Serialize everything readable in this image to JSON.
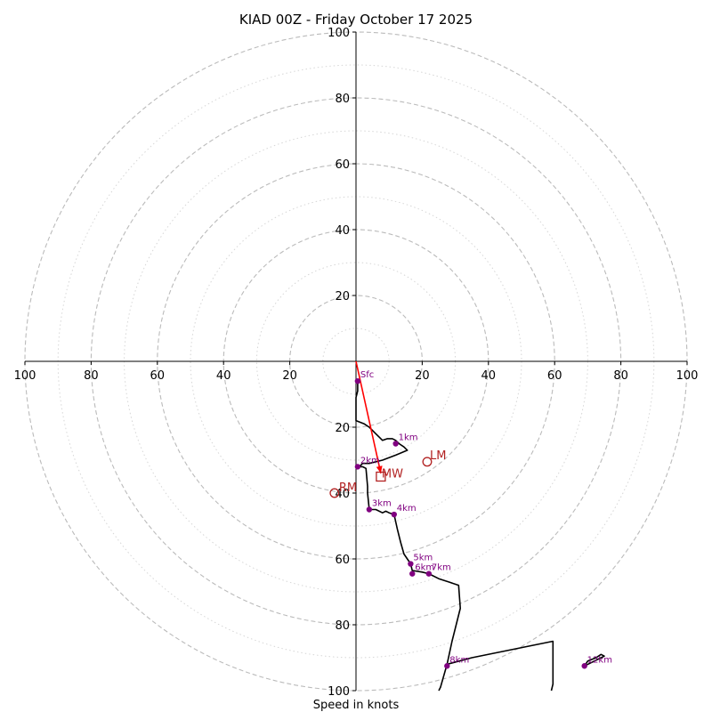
{
  "chart_data": {
    "type": "hodograph",
    "title": "KIAD 00Z - Friday October 17 2025",
    "xlabel": "Speed in knots",
    "units": "knots",
    "range": [
      -100,
      100
    ],
    "ring_major": [
      20,
      40,
      60,
      80,
      100
    ],
    "ring_minor": [
      10,
      30,
      50,
      70,
      90
    ],
    "x_ticks": [
      "100",
      "80",
      "60",
      "40",
      "20",
      "20",
      "40",
      "60",
      "80",
      "100"
    ],
    "x_tick_values": [
      -100,
      -80,
      -60,
      -40,
      -20,
      20,
      40,
      60,
      80,
      100
    ],
    "y_ticks": [
      "100",
      "80",
      "60",
      "40",
      "20",
      "20",
      "40",
      "60",
      "80",
      "100"
    ],
    "y_tick_values": [
      100,
      80,
      60,
      40,
      20,
      -20,
      -40,
      -60,
      -80,
      -100
    ],
    "wind_profile": [
      [
        0.5,
        -6
      ],
      [
        0.5,
        -9
      ],
      [
        0,
        -11
      ],
      [
        0,
        -13
      ],
      [
        0,
        -15
      ],
      [
        0,
        -18
      ],
      [
        2.5,
        -19
      ],
      [
        4,
        -20
      ],
      [
        5,
        -21
      ],
      [
        6,
        -22
      ],
      [
        7,
        -23
      ],
      [
        8,
        -24
      ],
      [
        9.5,
        -23.5
      ],
      [
        11,
        -23.5
      ],
      [
        12,
        -24
      ],
      [
        13,
        -25
      ],
      [
        14.5,
        -26
      ],
      [
        15.5,
        -27
      ],
      [
        12,
        -28.5
      ],
      [
        8,
        -30
      ],
      [
        4,
        -31
      ],
      [
        2,
        -31
      ],
      [
        1,
        -32
      ],
      [
        2,
        -32
      ],
      [
        3,
        -32.5
      ],
      [
        3.5,
        -38
      ],
      [
        3.5,
        -40
      ],
      [
        4,
        -45
      ],
      [
        6,
        -45
      ],
      [
        8,
        -46
      ],
      [
        9,
        -45.5
      ],
      [
        10,
        -46
      ],
      [
        11.5,
        -46.5
      ],
      [
        12.5,
        -51
      ],
      [
        13.5,
        -55
      ],
      [
        14.5,
        -58.5
      ],
      [
        16.5,
        -61.5
      ],
      [
        17,
        -63.5
      ],
      [
        20,
        -64
      ],
      [
        22,
        -64.5
      ],
      [
        25,
        -66
      ],
      [
        28,
        -67
      ],
      [
        31,
        -68
      ],
      [
        31.5,
        -75
      ],
      [
        29,
        -85
      ],
      [
        27.5,
        -92
      ],
      [
        25.5,
        -99
      ],
      [
        25,
        -100
      ]
    ],
    "second_segment": [
      [
        59,
        -100
      ],
      [
        59.5,
        -98
      ],
      [
        59.5,
        -93
      ],
      [
        59.5,
        -88
      ],
      [
        59.5,
        -85
      ],
      [
        35,
        -90
      ],
      [
        27.5,
        -92
      ]
    ],
    "third_segment": [
      [
        69,
        -92.5
      ],
      [
        70,
        -91
      ],
      [
        72.5,
        -90
      ],
      [
        74,
        -89
      ],
      [
        75,
        -89.5
      ],
      [
        69,
        -92.5
      ]
    ],
    "height_points": [
      {
        "label": "Sfc",
        "u": 0.5,
        "v": -6
      },
      {
        "label": "1km",
        "u": 12,
        "v": -25
      },
      {
        "label": "2km",
        "u": 0.5,
        "v": -32
      },
      {
        "label": "3km",
        "u": 4,
        "v": -45
      },
      {
        "label": "4km",
        "u": 11.5,
        "v": -46.5
      },
      {
        "label": "5km",
        "u": 16.5,
        "v": -61.5
      },
      {
        "label": "6km",
        "u": 17,
        "v": -64.5
      },
      {
        "label": "7km",
        "u": 22,
        "v": -64.5
      },
      {
        "label": "8km",
        "u": 27.5,
        "v": -92.5
      },
      {
        "label": "12km",
        "u": 69,
        "v": -92.5
      }
    ],
    "storm_motion": {
      "LM": {
        "label": "LM",
        "u": 21.5,
        "v": -30.5
      },
      "MW": {
        "label": "MW",
        "u": 7.5,
        "v": -35
      },
      "RM": {
        "label": "RM",
        "u": -6.5,
        "v": -40
      }
    },
    "arrow": {
      "from_u": 0,
      "from_v": 0,
      "to_u": 7.5,
      "to_v": -34
    }
  },
  "colors": {
    "profile": "#000000",
    "points": "#800080",
    "point_labels": "#800080",
    "motion": "#b22222",
    "arrow": "#ff0000",
    "ring_major": "#bbbbbb",
    "ring_minor": "#d6d6d6"
  }
}
